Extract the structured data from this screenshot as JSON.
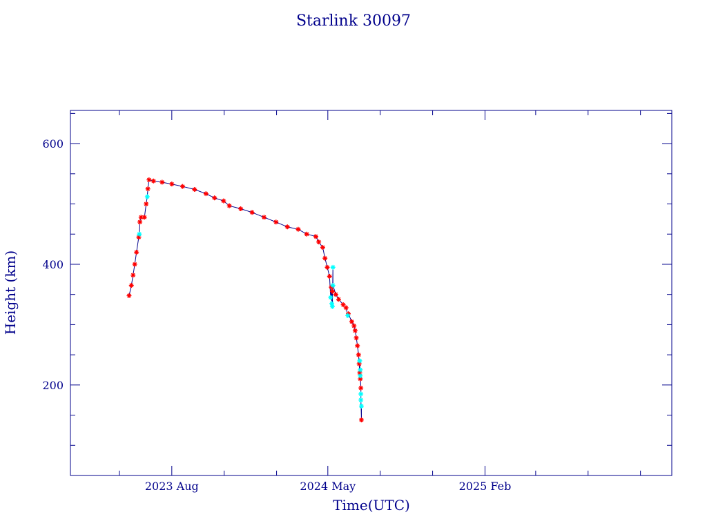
{
  "chart_data": {
    "type": "scatter",
    "title": "Starlink 30097",
    "xlabel": "Time(UTC)",
    "ylabel": "Height (km)",
    "xlim": [
      "2023-02-04",
      "2025-12-26"
    ],
    "ylim": [
      50,
      655
    ],
    "grid": false,
    "x_tick_labels": [
      "2023 Aug",
      "2024 May",
      "2025 Feb"
    ],
    "x_tick_dates": [
      "2023-08-01",
      "2024-05-01",
      "2025-02-01"
    ],
    "y_tick_labels": [
      "200",
      "400",
      "600"
    ],
    "y_tick_values": [
      200,
      400,
      600
    ],
    "line_color": "#00008b",
    "series": [
      {
        "color": "#ff0000",
        "points": [
          [
            "2023-05-18",
            348
          ],
          [
            "2023-05-22",
            365
          ],
          [
            "2023-05-25",
            382
          ],
          [
            "2023-05-28",
            400
          ],
          [
            "2023-05-31",
            420
          ],
          [
            "2023-06-04",
            445
          ],
          [
            "2023-06-06",
            470
          ],
          [
            "2023-06-08",
            478
          ],
          [
            "2023-06-14",
            478
          ],
          [
            "2023-06-17",
            500
          ],
          [
            "2023-06-20",
            525
          ],
          [
            "2023-06-22",
            540
          ],
          [
            "2023-06-30",
            538
          ],
          [
            "2023-07-15",
            536
          ],
          [
            "2023-08-01",
            533
          ],
          [
            "2023-08-20",
            529
          ],
          [
            "2023-09-10",
            524
          ],
          [
            "2023-09-30",
            517
          ],
          [
            "2023-10-15",
            510
          ],
          [
            "2023-10-31",
            505
          ],
          [
            "2023-11-10",
            497
          ],
          [
            "2023-11-30",
            492
          ],
          [
            "2023-12-20",
            486
          ],
          [
            "2024-01-10",
            478
          ],
          [
            "2024-01-31",
            470
          ],
          [
            "2024-02-20",
            462
          ],
          [
            "2024-03-10",
            458
          ],
          [
            "2024-03-25",
            450
          ],
          [
            "2024-04-10",
            446
          ],
          [
            "2024-04-15",
            437
          ],
          [
            "2024-04-22",
            428
          ],
          [
            "2024-04-26",
            410
          ],
          [
            "2024-04-30",
            395
          ],
          [
            "2024-05-04",
            380
          ],
          [
            "2024-05-07",
            362
          ],
          [
            "2024-05-09",
            355
          ],
          [
            "2024-05-15",
            350
          ],
          [
            "2024-05-20",
            342
          ],
          [
            "2024-05-28",
            333
          ],
          [
            "2024-06-02",
            328
          ],
          [
            "2024-06-06",
            318
          ],
          [
            "2024-06-12",
            305
          ],
          [
            "2024-06-16",
            298
          ],
          [
            "2024-06-18",
            290
          ],
          [
            "2024-06-20",
            278
          ],
          [
            "2024-06-22",
            265
          ],
          [
            "2024-06-24",
            250
          ],
          [
            "2024-06-25",
            235
          ],
          [
            "2024-06-26",
            220
          ],
          [
            "2024-06-27",
            210
          ],
          [
            "2024-06-28",
            195
          ],
          [
            "2024-06-29",
            142
          ]
        ]
      },
      {
        "color": "#00ffff",
        "points": [
          [
            "2023-06-05",
            450
          ],
          [
            "2023-06-19",
            512
          ],
          [
            "2024-05-06",
            345
          ],
          [
            "2024-05-08",
            335
          ],
          [
            "2024-05-09",
            330
          ],
          [
            "2024-05-10",
            395
          ],
          [
            "2024-05-10",
            365
          ],
          [
            "2024-06-05",
            315
          ],
          [
            "2024-06-26",
            240
          ],
          [
            "2024-06-27",
            225
          ],
          [
            "2024-06-27",
            215
          ],
          [
            "2024-06-28",
            185
          ],
          [
            "2024-06-28",
            175
          ],
          [
            "2024-06-29",
            165
          ]
        ]
      }
    ]
  }
}
